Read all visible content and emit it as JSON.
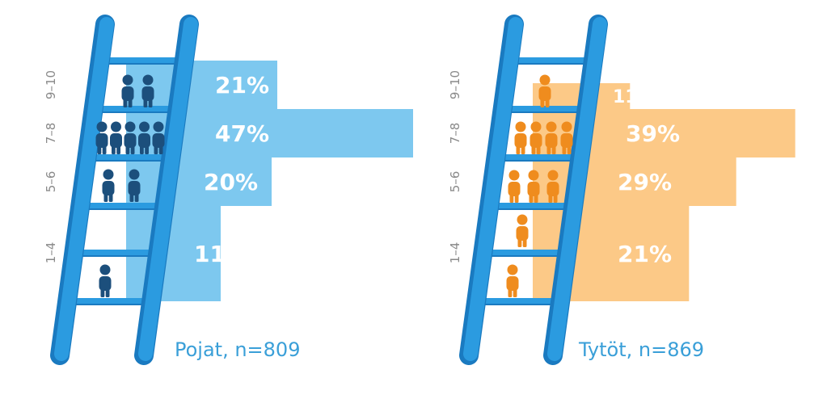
{
  "colors": {
    "ladder": "#2b9be0",
    "ladder_edge": "#1a7ac0",
    "boys_bar": "#7dc8ef",
    "boys_figure": "#1c4f7c",
    "boys_caption": "#3a9fd8",
    "girls_bar": "#fcc987",
    "girls_figure": "#ef8c1e",
    "girls_caption": "#3a9fd8"
  },
  "chart_data": [
    {
      "type": "bar",
      "orientation": "horizontal",
      "caption": "Pojat, n=809",
      "categories": [
        "9–10",
        "7–8",
        "5–6",
        "1–4"
      ],
      "values": [
        21,
        47,
        20,
        11
      ],
      "labels": [
        "21%",
        "47%",
        "20%",
        "11%"
      ],
      "unit": "%",
      "figures": [
        2,
        5,
        2,
        1
      ]
    },
    {
      "type": "bar",
      "orientation": "horizontal",
      "caption": "Tytöt, n=869",
      "categories": [
        "9–10",
        "7–8",
        "5–6",
        "1–4"
      ],
      "values": [
        11,
        39,
        29,
        21
      ],
      "labels": [
        "11%",
        "39%",
        "29%",
        "21%"
      ],
      "unit": "%",
      "figures": [
        1,
        4,
        3,
        2
      ]
    }
  ]
}
